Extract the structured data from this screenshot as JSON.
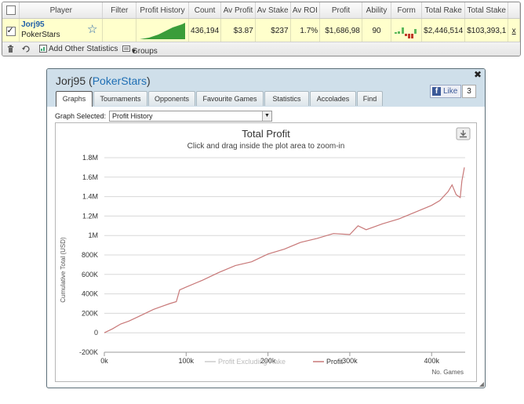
{
  "stats_table": {
    "columns": [
      "",
      "Player",
      "Filter",
      "Profit History",
      "Count",
      "Av Profit",
      "Av Stake",
      "Av ROI",
      "Profit",
      "Ability",
      "Form",
      "Total Rake",
      "Total Stake",
      ""
    ],
    "row": {
      "player_name": "Jorj95",
      "site": "PokerStars",
      "filter": "",
      "count": "436,194",
      "av_profit": "$3.87",
      "av_stake": "$237",
      "av_roi": "1.7%",
      "profit": "$1,686,98",
      "ability": "90",
      "total_rake": "$2,446,514",
      "total_stake": "$103,393,1",
      "remove_label": "x"
    },
    "toolbar": {
      "add_stats_label": "Add Other Statistics",
      "groups_label": "Groups"
    }
  },
  "dialog": {
    "player_name": "Jorj95",
    "site": "PokerStars",
    "like_label": "Like",
    "like_count": "3",
    "tabs": [
      "Graphs",
      "Tournaments",
      "Opponents",
      "Favourite Games",
      "Statistics",
      "Accolades",
      "Find"
    ],
    "active_tab": "Graphs",
    "graph_selected_label": "Graph Selected:",
    "graph_selected_value": "Profit History"
  },
  "chart_data": {
    "type": "line",
    "title": "Total Profit",
    "subtitle": "Click and drag inside the plot area to zoom-in",
    "xlabel": "No. Games",
    "ylabel": "Cumulative Total (USD)",
    "xlim": [
      0,
      441000
    ],
    "ylim": [
      -200000,
      1800000
    ],
    "x_ticks": [
      "0k",
      "100k",
      "200k",
      "300k",
      "400k"
    ],
    "y_ticks": [
      "-200K",
      "0",
      "200K",
      "400K",
      "600K",
      "800K",
      "1M",
      "1.2M",
      "1.4M",
      "1.6M",
      "1.8M"
    ],
    "legend": [
      "Profit Excluding Rake",
      "Profit"
    ],
    "legend_position": "bottom-center",
    "grid": true,
    "series": [
      {
        "name": "Profit Excluding Rake",
        "color": "#cccccc",
        "x": [],
        "y": []
      },
      {
        "name": "Profit",
        "color": "#c87878",
        "x": [
          0,
          10000,
          20000,
          30000,
          40000,
          50000,
          60000,
          70000,
          80000,
          88000,
          92000,
          100000,
          120000,
          140000,
          160000,
          180000,
          200000,
          220000,
          240000,
          260000,
          280000,
          300000,
          310000,
          320000,
          340000,
          360000,
          380000,
          400000,
          410000,
          420000,
          425000,
          430000,
          435000,
          437000,
          440000
        ],
        "y": [
          0,
          40000,
          90000,
          120000,
          160000,
          200000,
          240000,
          270000,
          300000,
          320000,
          440000,
          470000,
          540000,
          620000,
          690000,
          730000,
          810000,
          860000,
          930000,
          970000,
          1020000,
          1010000,
          1100000,
          1060000,
          1120000,
          1170000,
          1240000,
          1310000,
          1360000,
          1450000,
          1520000,
          1420000,
          1390000,
          1560000,
          1700000
        ]
      }
    ]
  },
  "icons": {
    "star": "star-icon",
    "trash": "trash-icon",
    "refresh": "refresh-icon",
    "add_stats": "add-stats-icon",
    "groups": "groups-icon",
    "close": "close-icon",
    "download": "download-icon",
    "facebook": "facebook-icon"
  }
}
